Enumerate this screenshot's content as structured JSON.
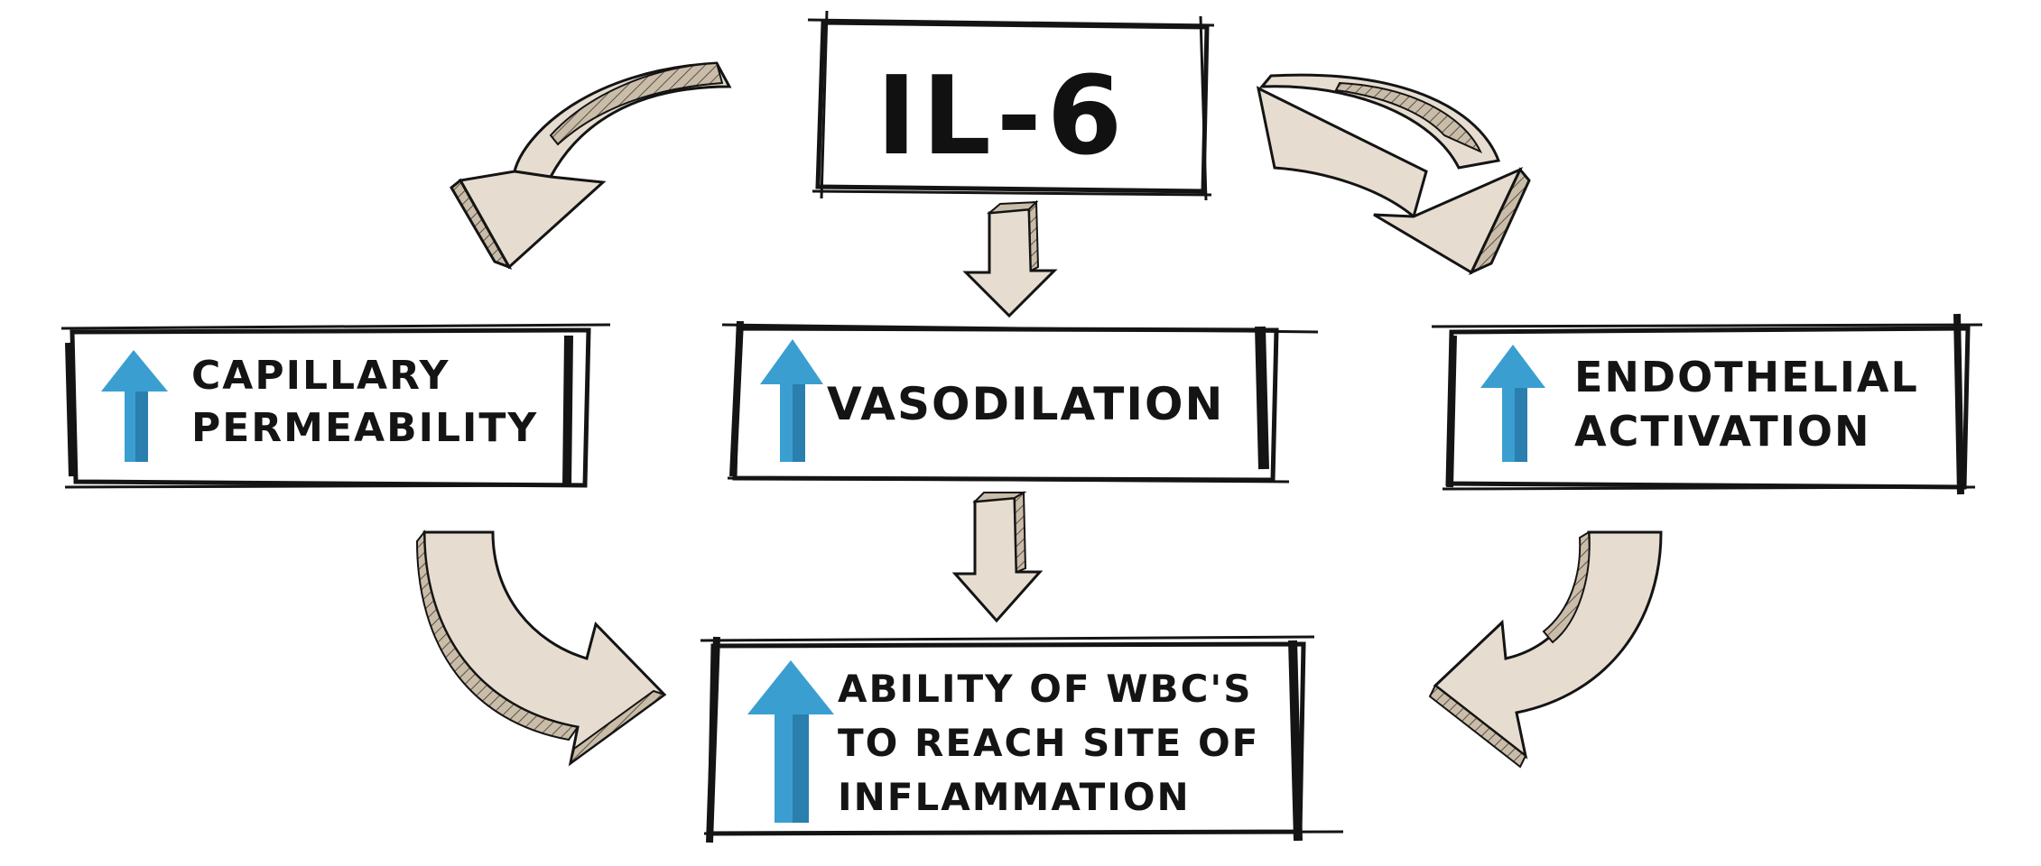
{
  "colors": {
    "arrow_fill": "#e6ddd0",
    "arrow_shade": "#b8ab99",
    "ink": "#141414",
    "up_arrow": "#3a9fd0"
  },
  "nodes": {
    "center": {
      "label": "IL-6"
    },
    "capillary": {
      "lines": [
        "CAPILLARY",
        "PERMEABILITY"
      ],
      "icon": "up-arrow-icon"
    },
    "vasodilation": {
      "lines": [
        "VASODILATION"
      ],
      "icon": "up-arrow-icon"
    },
    "endothelial": {
      "lines": [
        "ENDOTHELIAL",
        "ACTIVATION"
      ],
      "icon": "up-arrow-icon"
    },
    "outcome": {
      "lines": [
        "ABILITY OF WBC'S",
        "TO REACH SITE OF",
        "INFLAMMATION"
      ],
      "icon": "up-arrow-icon"
    }
  },
  "edges": [
    {
      "from": "IL-6",
      "to": "CAPILLARY PERMEABILITY"
    },
    {
      "from": "IL-6",
      "to": "VASODILATION"
    },
    {
      "from": "IL-6",
      "to": "ENDOTHELIAL ACTIVATION"
    },
    {
      "from": "CAPILLARY PERMEABILITY",
      "to": "ABILITY OF WBC'S TO REACH SITE OF INFLAMMATION"
    },
    {
      "from": "VASODILATION",
      "to": "ABILITY OF WBC'S TO REACH SITE OF INFLAMMATION"
    },
    {
      "from": "ENDOTHELIAL ACTIVATION",
      "to": "ABILITY OF WBC'S TO REACH SITE OF INFLAMMATION"
    }
  ]
}
